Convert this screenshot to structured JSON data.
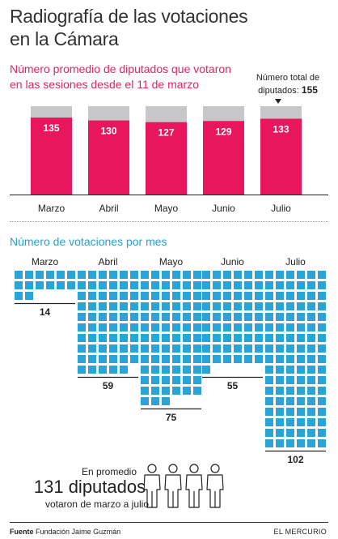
{
  "title_line1": "Radiografía de las votaciones",
  "title_line2": "en la Cámara",
  "colors": {
    "accent": "#e8175d",
    "grey": "#c7c7c9",
    "blue": "#2aa3d6",
    "subtitle_pink": "#e3265e"
  },
  "section1": {
    "subtitle_line1": "Número promedio de diputados que votaron",
    "subtitle_line2": "en las sesiones desde el 11 de marzo",
    "total_note_line1": "Número total de",
    "total_note_prefix": "diputados:",
    "total_value": "155"
  },
  "section2": {
    "subtitle": "Número de votaciones por mes"
  },
  "average": {
    "pre": "En promedio",
    "value": "131 diputados",
    "post": "votaron de marzo a julio",
    "icon": "people-icon"
  },
  "footer": {
    "source_label": "Fuente",
    "source_text": "Fundación Jaime Guzmán",
    "brand": "EL MERCURIO"
  },
  "chart_data": [
    {
      "type": "bar",
      "title": "Número promedio de diputados que votaron en las sesiones desde el 11 de marzo",
      "categories": [
        "Marzo",
        "Abril",
        "Mayo",
        "Junio",
        "Julio"
      ],
      "series": [
        {
          "name": "",
          "values": [
            135,
            130,
            127,
            129,
            133
          ]
        }
      ],
      "total": 155,
      "ylim": [
        0,
        155
      ]
    },
    {
      "type": "bar",
      "title": "Número de votaciones por mes",
      "categories": [
        "Marzo",
        "Abril",
        "Mayo",
        "Junio",
        "Julio"
      ],
      "values": [
        14,
        59,
        75,
        55,
        102
      ]
    }
  ]
}
